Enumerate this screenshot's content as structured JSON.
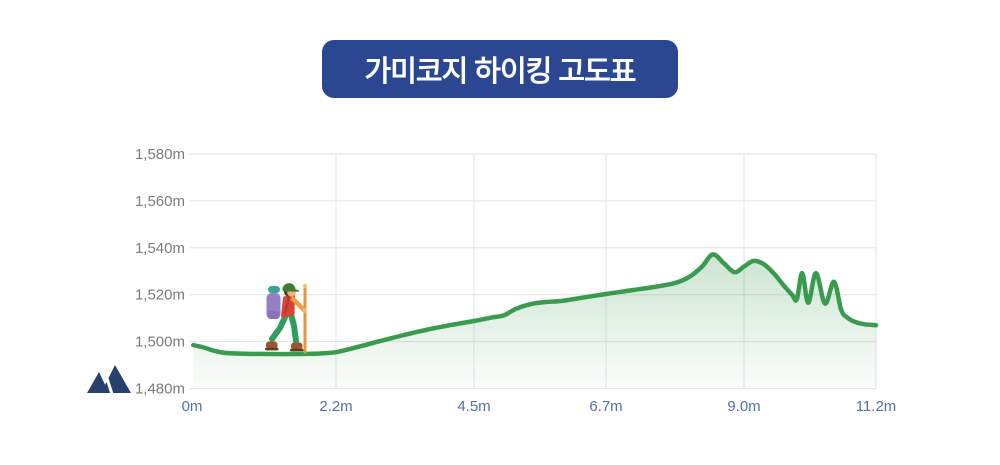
{
  "title": "가미코지 하이킹 고도표",
  "colors": {
    "background": "#FFFFFF",
    "banner_bg": "#2B4791",
    "banner_text": "#FFFFFF",
    "line": "#3A9B4E",
    "hgrid": "#E2E2E2",
    "vgrid": "#DEE4EC",
    "y_label": "#7C7C7C",
    "x_label": "#5671A6",
    "mountain": "#27406E"
  },
  "icons": {
    "mountain": "mountain-icon",
    "hiker": "hiker-illustration"
  },
  "chart_data": {
    "type": "area",
    "title": "가미코지 하이킹 고도표",
    "legend": null,
    "grid": true,
    "xlim": [
      0,
      11.2
    ],
    "ylim": [
      1480,
      1580
    ],
    "x_ticks": [
      {
        "value": 0,
        "label": "0m"
      },
      {
        "value": 2.2,
        "label": "2.2m"
      },
      {
        "value": 4.5,
        "label": "4.5m"
      },
      {
        "value": 6.7,
        "label": "6.7m"
      },
      {
        "value": 9.0,
        "label": "9.0m"
      },
      {
        "value": 11.2,
        "label": "11.2m"
      }
    ],
    "y_ticks": [
      {
        "value": 1480,
        "label": "1,480m"
      },
      {
        "value": 1500,
        "label": "1,500m"
      },
      {
        "value": 1520,
        "label": "1,520m"
      },
      {
        "value": 1540,
        "label": "1,540m"
      },
      {
        "value": 1560,
        "label": "1,560m"
      },
      {
        "value": 1580,
        "label": "1,580m"
      }
    ],
    "series_name": "elevation-profile",
    "points": [
      [
        -0.18,
        1498.5
      ],
      [
        0,
        1497.5
      ],
      [
        0.15,
        1496.2
      ],
      [
        0.35,
        1495.2
      ],
      [
        0.7,
        1494.8
      ],
      [
        1.1,
        1494.7
      ],
      [
        1.5,
        1494.7
      ],
      [
        1.9,
        1494.9
      ],
      [
        2.2,
        1495.5
      ],
      [
        2.5,
        1497.3
      ],
      [
        2.9,
        1500
      ],
      [
        3.3,
        1502.6
      ],
      [
        3.7,
        1505
      ],
      [
        4.1,
        1507
      ],
      [
        4.5,
        1508.8
      ],
      [
        4.8,
        1510.3
      ],
      [
        5.0,
        1511.2
      ],
      [
        5.2,
        1514
      ],
      [
        5.45,
        1516
      ],
      [
        5.7,
        1516.9
      ],
      [
        5.95,
        1517.3
      ],
      [
        6.2,
        1518.3
      ],
      [
        6.7,
        1520.3
      ],
      [
        7.1,
        1521.8
      ],
      [
        7.5,
        1523.3
      ],
      [
        7.85,
        1525
      ],
      [
        8.1,
        1527.8
      ],
      [
        8.3,
        1532
      ],
      [
        8.48,
        1537.2
      ],
      [
        8.66,
        1533.5
      ],
      [
        8.84,
        1529.6
      ],
      [
        9.0,
        1532
      ],
      [
        9.16,
        1534.4
      ],
      [
        9.33,
        1533
      ],
      [
        9.5,
        1529
      ],
      [
        9.66,
        1524
      ],
      [
        9.8,
        1520
      ],
      [
        9.88,
        1518
      ],
      [
        9.97,
        1529.2
      ],
      [
        10.07,
        1516.6
      ],
      [
        10.2,
        1529.2
      ],
      [
        10.35,
        1516.2
      ],
      [
        10.5,
        1525.5
      ],
      [
        10.62,
        1513.5
      ],
      [
        10.72,
        1510.3
      ],
      [
        10.85,
        1508.4
      ],
      [
        11.0,
        1507.4
      ],
      [
        11.2,
        1507
      ]
    ]
  }
}
